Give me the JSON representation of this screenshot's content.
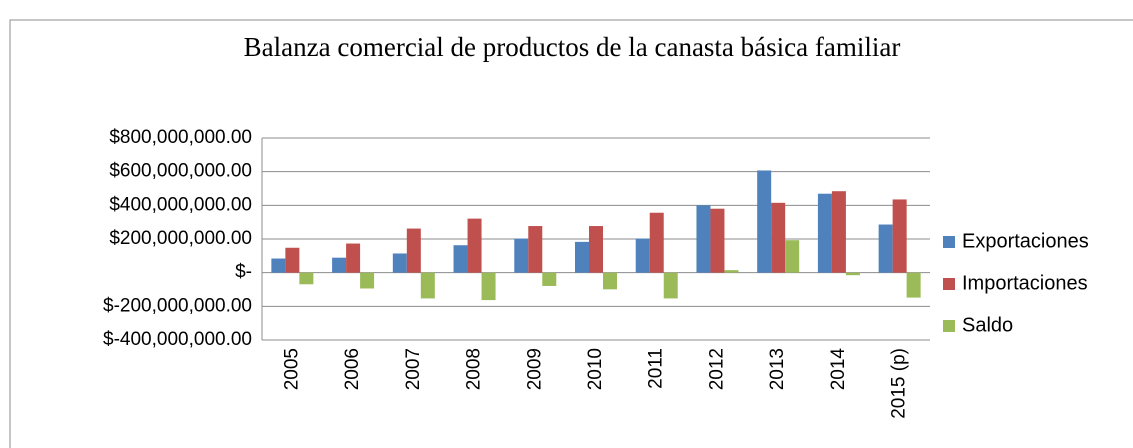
{
  "chart_data": {
    "type": "bar",
    "title": "Balanza comercial de productos de la canasta básica familiar",
    "categories": [
      "2005",
      "2006",
      "2007",
      "2008",
      "2009",
      "2010",
      "2011",
      "2012",
      "2013",
      "2014",
      "2015 (p)"
    ],
    "series": [
      {
        "name": "Exportaciones",
        "color": "#4f81bd",
        "values": [
          84000000,
          89000000,
          114000000,
          163000000,
          202000000,
          183000000,
          202000000,
          400000000,
          607000000,
          469000000,
          286000000
        ]
      },
      {
        "name": "Importaciones",
        "color": "#c0504d",
        "values": [
          148000000,
          173000000,
          262000000,
          321000000,
          277000000,
          277000000,
          356000000,
          380000000,
          415000000,
          484000000,
          435000000
        ]
      },
      {
        "name": "Saldo",
        "color": "#9bbb59",
        "values": [
          -69000000,
          -94000000,
          -153000000,
          -163000000,
          -79000000,
          -99000000,
          -153000000,
          15000000,
          193000000,
          -15000000,
          -148000000
        ]
      }
    ],
    "ylim": [
      -400000000,
      800000000
    ],
    "yticks": [
      {
        "value": -400000000,
        "label": "$-400,000,000.00"
      },
      {
        "value": -200000000,
        "label": "$-200,000,000.00"
      },
      {
        "value": 0,
        "label": "$-"
      },
      {
        "value": 200000000,
        "label": "$200,000,000.00"
      },
      {
        "value": 400000000,
        "label": "$400,000,000.00"
      },
      {
        "value": 600000000,
        "label": "$600,000,000.00"
      },
      {
        "value": 800000000,
        "label": "$800,000,000.00"
      }
    ],
    "grid": true,
    "legend": "right"
  }
}
